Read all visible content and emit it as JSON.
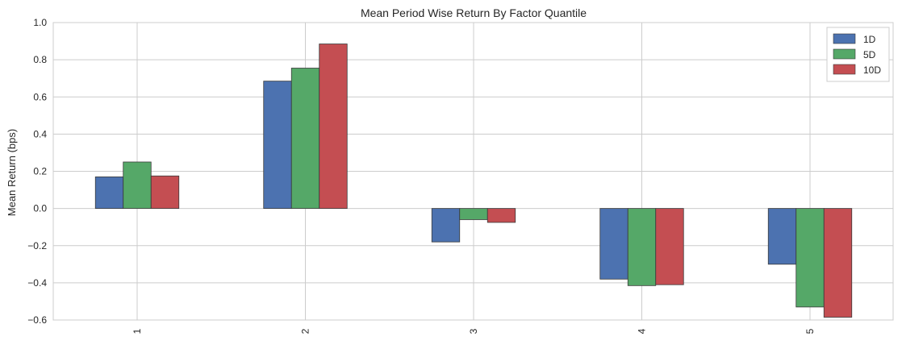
{
  "chart_data": {
    "type": "bar",
    "title": "Mean Period Wise Return By Factor Quantile",
    "xlabel": "",
    "ylabel": "Mean Return (bps)",
    "categories": [
      "1",
      "2",
      "3",
      "4",
      "5"
    ],
    "series": [
      {
        "name": "1D",
        "color": "#4c72b0",
        "values": [
          0.17,
          0.685,
          -0.18,
          -0.38,
          -0.3
        ]
      },
      {
        "name": "5D",
        "color": "#55a868",
        "values": [
          0.25,
          0.755,
          -0.06,
          -0.415,
          -0.53
        ]
      },
      {
        "name": "10D",
        "color": "#c44e52",
        "values": [
          0.175,
          0.885,
          -0.075,
          -0.41,
          -0.585
        ]
      }
    ],
    "ylim": [
      -0.6,
      1.0
    ],
    "yticks": [
      1.0,
      0.8,
      0.6,
      0.4,
      0.2,
      0.0,
      -0.2,
      -0.4,
      -0.6
    ],
    "ytick_labels": [
      "1.0",
      "0.8",
      "0.6",
      "0.4",
      "0.2",
      "0.0",
      "−0.2",
      "−0.4",
      "−0.6"
    ],
    "grid": true,
    "legend_position": "top-right"
  }
}
